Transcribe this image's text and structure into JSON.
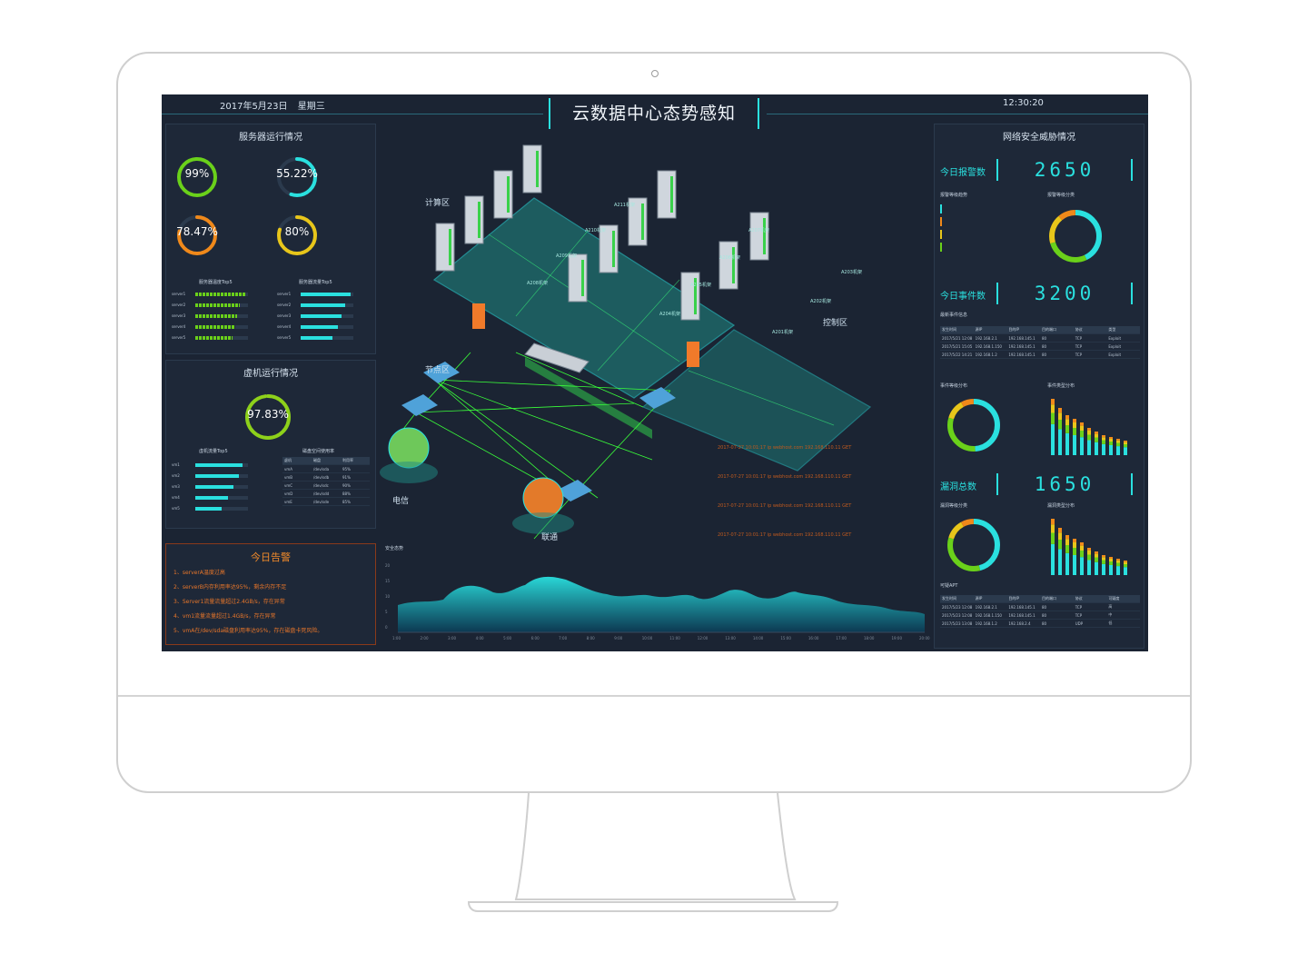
{
  "header": {
    "date": "2017年5月23日",
    "weekday": "星期三",
    "title": "云数据中心态势感知",
    "time": "12:30:20"
  },
  "server_panel": {
    "title": "服务器运行情况",
    "gauges": [
      {
        "value": "99%",
        "color": "#6ad11a"
      },
      {
        "value": "55.22%",
        "color": "#2ae0df"
      },
      {
        "value": "78.47%",
        "color": "#f0891a"
      },
      {
        "value": "80%",
        "color": "#e8c61a"
      }
    ],
    "left_list_title": "服务器温度Top5",
    "right_list_title": "服务器流量Top5",
    "left_list": [
      {
        "label": "server1",
        "fill": 0.95
      },
      {
        "label": "server2",
        "fill": 0.85
      },
      {
        "label": "server3",
        "fill": 0.8
      },
      {
        "label": "server4",
        "fill": 0.75
      },
      {
        "label": "server5",
        "fill": 0.7
      }
    ],
    "right_list": [
      {
        "label": "server1",
        "fill": 0.95
      },
      {
        "label": "server2",
        "fill": 0.85
      },
      {
        "label": "server3",
        "fill": 0.78
      },
      {
        "label": "server4",
        "fill": 0.7
      },
      {
        "label": "server5",
        "fill": 0.6
      }
    ]
  },
  "vm_panel": {
    "title": "虚机运行情况",
    "gauge_value": "97.83%",
    "gauge_color": "#8ed11a",
    "left_list_title": "虚机流量Top5",
    "right_list_title": "磁盘空间使用率",
    "left_list": [
      {
        "label": "vm1",
        "fill": 0.9
      },
      {
        "label": "vm2",
        "fill": 0.82
      },
      {
        "label": "vm3",
        "fill": 0.72
      },
      {
        "label": "vm4",
        "fill": 0.62
      },
      {
        "label": "vm5",
        "fill": 0.5
      }
    ],
    "table_head": [
      "虚机",
      "磁盘",
      "利用率"
    ],
    "table_rows": [
      [
        "vmA",
        "/dev/sda",
        "95%"
      ],
      [
        "vmB",
        "/dev/sdb",
        "91%"
      ],
      [
        "vmC",
        "/dev/sdc",
        "90%"
      ],
      [
        "vmD",
        "/dev/sdd",
        "88%"
      ],
      [
        "vmE",
        "/dev/sde",
        "85%"
      ]
    ]
  },
  "alert_panel": {
    "title": "今日告警",
    "items": [
      "1、serverA温度过高",
      "2、serverB内存利用率达95%，剩余内存不足",
      "3、Server1流量流量超过2.4GB/s，存在异常",
      "4、vm1流量流量超过1.4GB/s，存在异常",
      "5、vmA在/dev/sda磁盘利用率达95%，存在磁盘卡死风险。"
    ]
  },
  "center": {
    "zones": [
      "计算区",
      "控制区",
      "节点区",
      "电信",
      "联通"
    ],
    "racks": [
      "A211机架",
      "A210机架",
      "A209机架",
      "A208机架",
      "A207机架",
      "A206机架",
      "A205机架",
      "A204机架",
      "A203机架",
      "A202机架",
      "A201机架"
    ],
    "chart_title": "安全态势",
    "chart_y_ticks": [
      "20",
      "15",
      "10",
      "5",
      "0"
    ],
    "chart_x_ticks": [
      "1:00",
      "2:00",
      "3:00",
      "4:00",
      "5:00",
      "6:00",
      "7:00",
      "8:00",
      "9:00",
      "10:00",
      "11:00",
      "12:00",
      "13:00",
      "14:00",
      "15:00",
      "16:00",
      "17:00",
      "18:00",
      "19:00",
      "20:00"
    ],
    "logs": [
      "2017-07-27 10:01:17    ip  webhost.com   192.168.110.11  GET",
      "2017-07-27 10:01:17    ip  webhost.com   192.168.110.11  GET",
      "2017-07-27 10:01:17    ip  webhost.com   192.168.110.11  GET",
      "2017-07-27 10:01:17    ip  webhost.com   192.168.110.11  GET"
    ]
  },
  "right_panel": {
    "title": "网络安全威胁情况",
    "kpis": [
      {
        "label": "今日报警数",
        "value": "2650"
      },
      {
        "label": "今日事件数",
        "value": "3200"
      },
      {
        "label": "漏洞总数",
        "value": "1650"
      }
    ],
    "alarm_trend_title": "报警等级趋势",
    "alarm_dist_title": "报警等级分类",
    "event_table_title": "最新事件信息",
    "event_table_head": [
      "发生时间",
      "源IP",
      "目的IP",
      "目的端口",
      "协议",
      "类型"
    ],
    "event_table_rows": [
      [
        "2017/5/21 12:08",
        "192.168.2.1",
        "192.168.145.1",
        "80",
        "TCP",
        "Exploit"
      ],
      [
        "2017/5/21 15:05",
        "192.168.1.150",
        "192.168.145.1",
        "80",
        "TCP",
        "Exploit"
      ],
      [
        "2017/5/22 14:21",
        "192.168.1.2",
        "192.168.145.1",
        "80",
        "TCP",
        "Exploit"
      ]
    ],
    "event_dist_title": "事件等级分布",
    "event_type_title": "事件类型分布",
    "vuln_dist_title": "漏洞等级分类",
    "vuln_type_title": "漏洞类型分布",
    "apt_title": "可疑APT",
    "apt_head": [
      "发生时间",
      "源IP",
      "目的IP",
      "目的端口",
      "协议",
      "可疑度"
    ],
    "apt_rows": [
      [
        "2017/5/23 12:08",
        "192.168.2.1",
        "192.168.145.1",
        "80",
        "TCP",
        "高"
      ],
      [
        "2017/5/23 12:08",
        "192.168.1.150",
        "192.168.145.1",
        "80",
        "TCP",
        "中"
      ],
      [
        "2017/5/23 13:08",
        "192.168.1.2",
        "192.168.2.4",
        "80",
        "UDP",
        "低"
      ]
    ]
  }
}
